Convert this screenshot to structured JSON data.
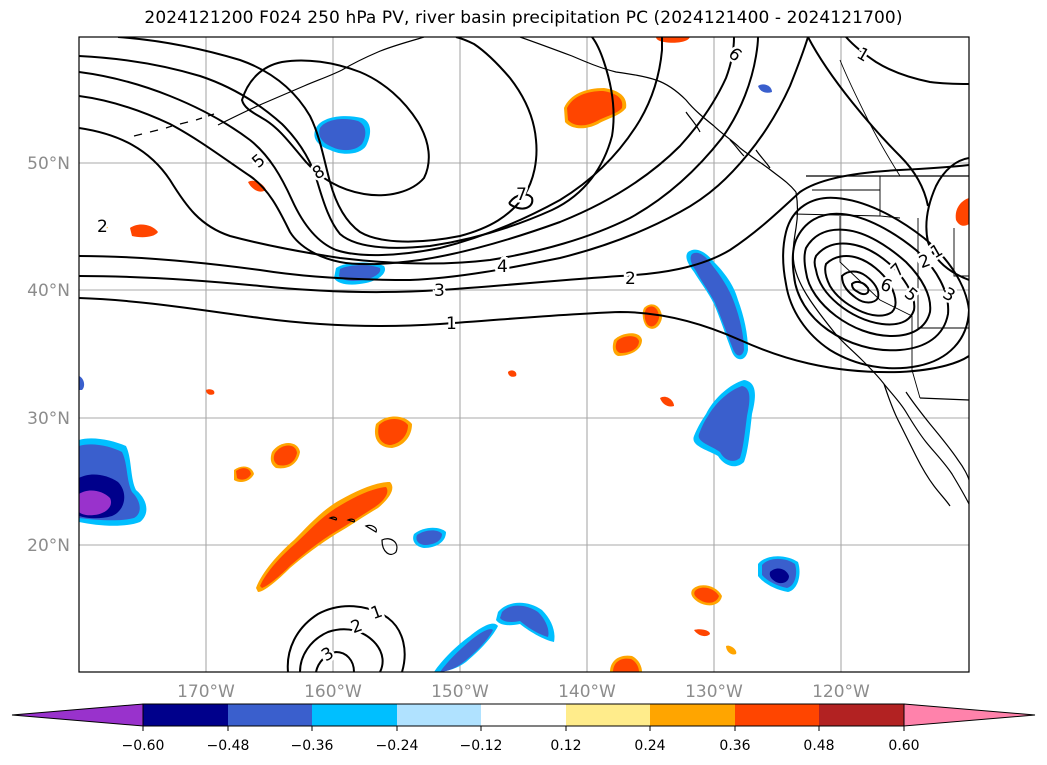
{
  "figure": {
    "title": "2024121200 F024 250 hPa PV, river basin precipitation PC (2024121400 - 2024121700)"
  },
  "map": {
    "latitude_labels": [
      "50°N",
      "40°N",
      "30°N",
      "20°N"
    ],
    "longitude_labels": [
      "170°W",
      "160°W",
      "150°W",
      "140°W",
      "130°W",
      "120°W"
    ],
    "pv_contour_labels": [
      "2",
      "5",
      "8",
      "7",
      "4",
      "3",
      "2",
      "1",
      "6",
      "1",
      "1",
      "2",
      "3",
      "6",
      "5",
      "7",
      "1",
      "2",
      "3"
    ],
    "colors": {
      "positive_orange": "#ff4500",
      "positive_light": "#ffa500",
      "negative_blue": "#3a5fcd",
      "negative_deep": "#00008b",
      "negative_purple": "#9932cc",
      "negative_cyan": "#00bfff"
    }
  },
  "colorbar": {
    "colors": [
      "#9932cc",
      "#00008b",
      "#3a5fcd",
      "#00bfff",
      "#b0e2ff",
      "#ffffff",
      "#ffec8b",
      "#ffa500",
      "#ff4500",
      "#b22222",
      "#ff82ab"
    ],
    "tick_labels": [
      "−0.60",
      "−0.48",
      "−0.36",
      "−0.24",
      "−0.12",
      "0.12",
      "0.24",
      "0.36",
      "0.48",
      "0.60"
    ]
  }
}
